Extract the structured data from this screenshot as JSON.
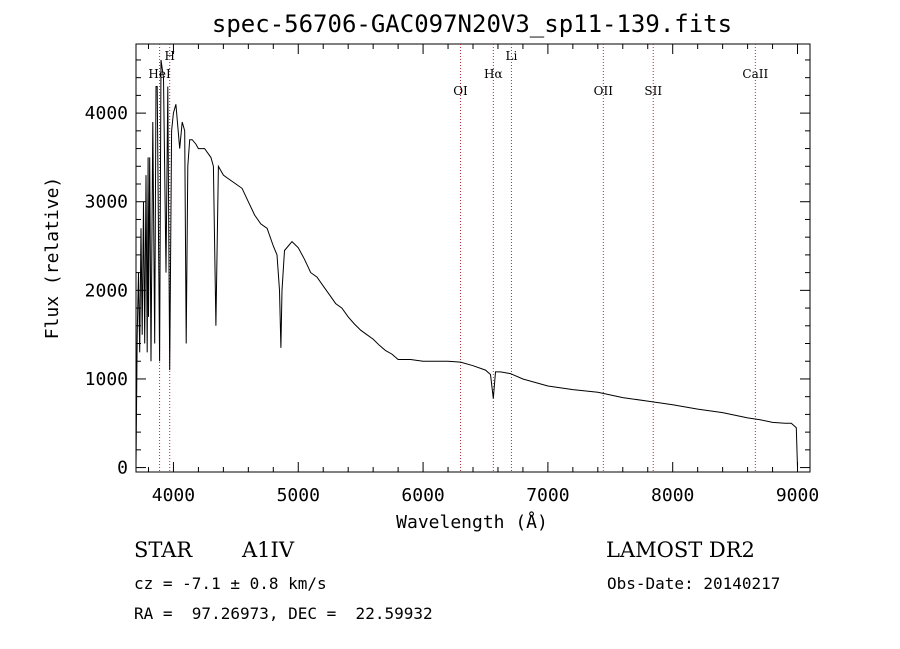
{
  "chart_data": {
    "type": "line",
    "title": "spec-56706-GAC097N20V3_sp11-139.fits",
    "xlabel": "Wavelength (Å)",
    "ylabel": "Flux (relative)",
    "xlim": [
      3700,
      9100
    ],
    "ylim": [
      -50,
      4780
    ],
    "x_ticks": [
      4000,
      5000,
      6000,
      7000,
      8000,
      9000
    ],
    "y_ticks": [
      0,
      1000,
      2000,
      3000,
      4000
    ],
    "grid": false,
    "series": [
      {
        "x": [
          3700,
          3710,
          3720,
          3730,
          3740,
          3750,
          3760,
          3770,
          3780,
          3790,
          3797,
          3800,
          3810,
          3820,
          3835,
          3850,
          3860,
          3870,
          3889,
          3900,
          3920,
          3940,
          3955,
          3970,
          3985,
          4000,
          4020,
          4050,
          4070,
          4090,
          4102,
          4115,
          4130,
          4150,
          4180,
          4200,
          4250,
          4300,
          4320,
          4340,
          4360,
          4380,
          4400,
          4450,
          4500,
          4550,
          4600,
          4650,
          4700,
          4750,
          4800,
          4830,
          4850,
          4861,
          4870,
          4890,
          4920,
          4950,
          5000,
          5050,
          5100,
          5150,
          5200,
          5250,
          5300,
          5350,
          5400,
          5450,
          5500,
          5550,
          5600,
          5650,
          5700,
          5750,
          5800,
          5900,
          6000,
          6100,
          6200,
          6300,
          6400,
          6500,
          6540,
          6563,
          6580,
          6620,
          6700,
          6800,
          6900,
          7000,
          7200,
          7400,
          7600,
          7800,
          8000,
          8200,
          8400,
          8500,
          8600,
          8700,
          8800,
          8900,
          8950,
          8990,
          9000
        ],
        "y": [
          0,
          1500,
          2200,
          1300,
          2700,
          1500,
          3000,
          1400,
          3300,
          1300,
          3500,
          1700,
          3500,
          1200,
          3900,
          1400,
          4300,
          4300,
          1200,
          4600,
          4400,
          2200,
          4300,
          1100,
          3800,
          4000,
          4100,
          3600,
          3900,
          3800,
          1400,
          3400,
          3700,
          3700,
          3650,
          3600,
          3600,
          3500,
          3400,
          1600,
          3400,
          3350,
          3300,
          3250,
          3200,
          3150,
          3000,
          2850,
          2750,
          2700,
          2500,
          2400,
          2000,
          1350,
          2000,
          2450,
          2500,
          2550,
          2480,
          2350,
          2200,
          2150,
          2050,
          1950,
          1850,
          1800,
          1700,
          1620,
          1550,
          1500,
          1450,
          1380,
          1320,
          1280,
          1220,
          1220,
          1200,
          1200,
          1200,
          1190,
          1150,
          1100,
          1050,
          780,
          1080,
          1080,
          1060,
          1000,
          960,
          920,
          880,
          850,
          790,
          750,
          710,
          660,
          620,
          590,
          560,
          540,
          510,
          500,
          500,
          450,
          0
        ]
      }
    ],
    "line_markers": [
      {
        "label": "HeI",
        "x": 3889
      },
      {
        "label": "H",
        "x": 3970
      },
      {
        "label": "OI",
        "x": 6300
      },
      {
        "label": "Hα",
        "x": 6563
      },
      {
        "label": "Li",
        "x": 6708
      },
      {
        "label": "OII",
        "x": 7444
      },
      {
        "label": "SII",
        "x": 7844
      },
      {
        "label": "CaII",
        "x": 8662
      }
    ],
    "colors": {
      "spectrum": "#000000",
      "marker_line": "#b03030",
      "axes": "#000000"
    }
  },
  "info": {
    "object_type": "STAR",
    "subclass": "A1IV",
    "survey": "LAMOST DR2",
    "cz_line": "cz = -7.1 ± 0.8 km/s",
    "obs_date_line": "Obs-Date: 20140217",
    "coords_line": "RA =  97.26973, DEC =  22.59932"
  }
}
